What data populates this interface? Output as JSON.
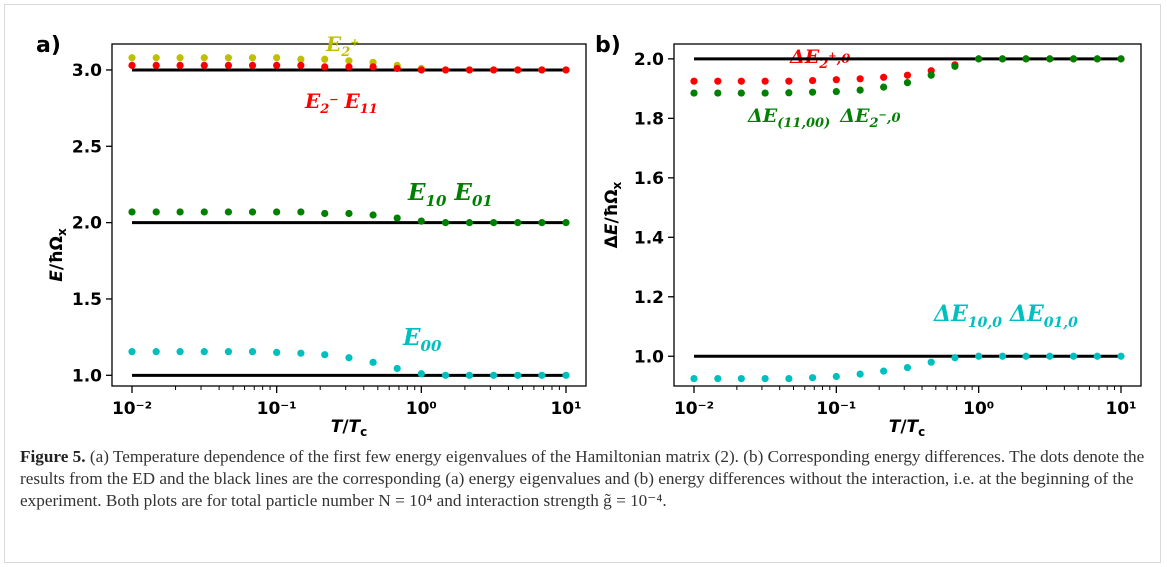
{
  "figure": {
    "caption_label": "Figure 5.",
    "caption_text": " (a) Temperature dependence of the first few energy eigenvalues of the Hamiltonian matrix (2). (b) Corresponding energy differences. The dots denote the results from the ED and the black lines are the corresponding (a) energy eigenvalues and (b) energy differences without the interaction, i.e. at the beginning of the experiment. Both plots are for total particle number N = 10⁴ and interaction strength g̃ = 10⁻⁴."
  },
  "chart_data": [
    {
      "type": "scatter",
      "panel_label": "a)",
      "xlabel": "T/Tc",
      "ylabel": "E/ħΩx",
      "xscale": "log",
      "xlim": [
        0.01,
        10
      ],
      "ylim": [
        0.93,
        3.17
      ],
      "yticks": [
        "1.0",
        "1.5",
        "2.0",
        "2.5",
        "3.0"
      ],
      "xticks": [
        "10⁻²",
        "10⁻¹",
        "10⁰",
        "10¹"
      ],
      "grid": false,
      "x": [
        0.01,
        0.0147,
        0.0215,
        0.0316,
        0.0464,
        0.0681,
        0.1,
        0.147,
        0.215,
        0.316,
        0.464,
        0.681,
        1.0,
        1.47,
        2.15,
        3.16,
        4.64,
        6.81,
        10.0
      ],
      "series": [
        {
          "name": "E2+",
          "color": "#bfbf00",
          "values": [
            3.08,
            3.08,
            3.08,
            3.08,
            3.08,
            3.08,
            3.08,
            3.07,
            3.07,
            3.06,
            3.05,
            3.03,
            3.01,
            3.0,
            3.0,
            3.0,
            3.0,
            3.0,
            3.0
          ]
        },
        {
          "name": "E2- E11",
          "color": "#ff0000",
          "values": [
            3.03,
            3.03,
            3.03,
            3.03,
            3.03,
            3.03,
            3.03,
            3.03,
            3.02,
            3.02,
            3.02,
            3.01,
            3.0,
            3.0,
            3.0,
            3.0,
            3.0,
            3.0,
            3.0
          ]
        },
        {
          "name": "E10 E01",
          "color": "#008000",
          "values": [
            2.07,
            2.07,
            2.07,
            2.07,
            2.07,
            2.07,
            2.07,
            2.07,
            2.06,
            2.06,
            2.05,
            2.03,
            2.01,
            2.0,
            2.0,
            2.0,
            2.0,
            2.0,
            2.0
          ]
        },
        {
          "name": "E00",
          "color": "#00bfbf",
          "values": [
            1.155,
            1.155,
            1.155,
            1.155,
            1.155,
            1.155,
            1.15,
            1.145,
            1.135,
            1.115,
            1.085,
            1.045,
            1.01,
            1.0,
            1.0,
            1.0,
            1.0,
            1.0,
            1.0
          ]
        }
      ],
      "reference_lines": [
        3.0,
        2.0,
        1.0
      ]
    },
    {
      "type": "scatter",
      "panel_label": "b)",
      "xlabel": "T/Tc",
      "ylabel": "ΔE/ħΩx",
      "xscale": "log",
      "xlim": [
        0.01,
        10
      ],
      "ylim": [
        0.9,
        2.05
      ],
      "yticks": [
        "1.0",
        "1.2",
        "1.4",
        "1.6",
        "1.8",
        "2.0"
      ],
      "xticks": [
        "10⁻²",
        "10⁻¹",
        "10⁰",
        "10¹"
      ],
      "grid": false,
      "x": [
        0.01,
        0.0147,
        0.0215,
        0.0316,
        0.0464,
        0.0681,
        0.1,
        0.147,
        0.215,
        0.316,
        0.464,
        0.681,
        1.0,
        1.47,
        2.15,
        3.16,
        4.64,
        6.81,
        10.0
      ],
      "series": [
        {
          "name": "ΔE2+,0",
          "color": "#ff0000",
          "values": [
            1.925,
            1.925,
            1.925,
            1.925,
            1.925,
            1.927,
            1.93,
            1.933,
            1.938,
            1.945,
            1.96,
            1.98,
            2.0,
            2.0,
            2.0,
            2.0,
            2.0,
            2.0,
            2.0
          ]
        },
        {
          "name": "ΔE(11,00) ΔE2-,0",
          "color": "#008000",
          "values": [
            1.885,
            1.885,
            1.885,
            1.885,
            1.886,
            1.888,
            1.89,
            1.895,
            1.905,
            1.92,
            1.945,
            1.975,
            2.0,
            2.0,
            2.0,
            2.0,
            2.0,
            2.0,
            2.0
          ]
        },
        {
          "name": "ΔE10,0 ΔE01,0",
          "color": "#00bfbf",
          "values": [
            0.925,
            0.925,
            0.925,
            0.925,
            0.925,
            0.928,
            0.932,
            0.94,
            0.95,
            0.962,
            0.98,
            0.995,
            1.0,
            1.0,
            1.0,
            1.0,
            1.0,
            1.0,
            1.0
          ]
        }
      ],
      "reference_lines": [
        2.0,
        1.0
      ]
    }
  ]
}
